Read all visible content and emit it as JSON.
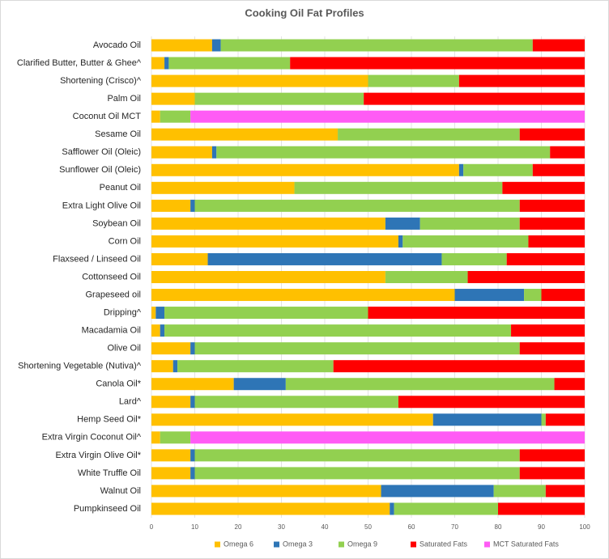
{
  "chart_data": {
    "type": "stacked-bar-horizontal",
    "title": "Cooking Oil Fat Profiles",
    "categories": [
      "Avocado Oil",
      "Clarified Butter, Butter & Ghee^",
      "Shortening (Crisco)^",
      "Palm Oil",
      "Coconut Oil MCT",
      "Sesame Oil",
      "Safflower Oil (Oleic)",
      "Sunflower Oil (Oleic)",
      "Peanut Oil",
      "Extra Light Olive Oil",
      "Soybean Oil",
      "Corn Oil",
      "Flaxseed / Linseed Oil",
      "Cottonseed Oil",
      "Grapeseed oil",
      "Dripping^",
      "Macadamia Oil",
      "Olive Oil",
      "Shortening Vegetable (Nutiva)^",
      "Canola Oil*",
      "Lard^",
      "Hemp Seed Oil*",
      "Extra Virgin Coconut Oil^",
      "Extra Virgin Olive Oil*",
      "White Truffle Oil",
      "Walnut Oil",
      "Pumpkinseed Oil"
    ],
    "series": [
      {
        "name": "Omega 6",
        "color": "#ffc000",
        "values": [
          14,
          3,
          50,
          10,
          2,
          43,
          14,
          71,
          33,
          9,
          54,
          57,
          13,
          54,
          70,
          1,
          2,
          9,
          5,
          19,
          9,
          65,
          2,
          9,
          9,
          53,
          55
        ]
      },
      {
        "name": "Omega 3",
        "color": "#2e75b6",
        "values": [
          2,
          1,
          0,
          0,
          0,
          0,
          1,
          1,
          0,
          1,
          8,
          1,
          54,
          0,
          16,
          2,
          1,
          1,
          1,
          12,
          1,
          25,
          0,
          1,
          1,
          26,
          1
        ]
      },
      {
        "name": "Omega 9",
        "color": "#92d050",
        "values": [
          72,
          28,
          21,
          39,
          7,
          42,
          77,
          16,
          48,
          75,
          23,
          29,
          15,
          19,
          4,
          47,
          80,
          75,
          36,
          62,
          47,
          1,
          7,
          75,
          75,
          12,
          24
        ]
      },
      {
        "name": "Saturated Fats",
        "color": "#ff0000",
        "values": [
          12,
          68,
          29,
          51,
          0,
          15,
          8,
          12,
          19,
          15,
          15,
          13,
          18,
          27,
          10,
          50,
          17,
          15,
          58,
          7,
          43,
          9,
          0,
          15,
          15,
          9,
          20
        ]
      },
      {
        "name": "MCT Saturated Fats",
        "color": "#ff5bf5",
        "values": [
          0,
          0,
          0,
          0,
          91,
          0,
          0,
          0,
          0,
          0,
          0,
          0,
          0,
          0,
          0,
          0,
          0,
          0,
          0,
          0,
          0,
          0,
          91,
          0,
          0,
          0,
          0
        ]
      }
    ],
    "xlim": [
      0,
      100
    ],
    "xticks": [
      0,
      10,
      20,
      30,
      40,
      50,
      60,
      70,
      80,
      90,
      100
    ],
    "grid": true
  }
}
